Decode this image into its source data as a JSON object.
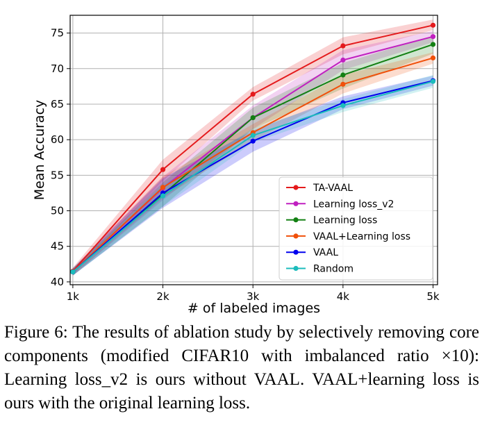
{
  "chart_data": {
    "type": "line",
    "xlabel": "# of labeled images",
    "ylabel": "Mean Accuracy",
    "categories": [
      "1k",
      "2k",
      "3k",
      "4k",
      "5k"
    ],
    "x": [
      1,
      2,
      3,
      4,
      5
    ],
    "xlim": [
      0.97,
      5.05
    ],
    "ylim": [
      39.6,
      77.5
    ],
    "yticks": [
      40,
      45,
      50,
      55,
      60,
      65,
      70,
      75
    ],
    "grid": true,
    "legend_position": "lower-right",
    "series": [
      {
        "name": "TA-VAAL",
        "color": "#e41a1c",
        "values": [
          41.5,
          55.8,
          66.4,
          73.2,
          76.1
        ],
        "band": [
          [
            41.0,
            42.0
          ],
          [
            54.2,
            57.2
          ],
          [
            65.5,
            67.4
          ],
          [
            72.0,
            74.4
          ],
          [
            75.4,
            76.9
          ]
        ]
      },
      {
        "name": "Learning loss_v2",
        "color": "#c020c0",
        "values": [
          41.4,
          53.2,
          63.1,
          71.2,
          74.5
        ],
        "band": [
          [
            40.9,
            41.9
          ],
          [
            51.5,
            54.8
          ],
          [
            61.5,
            64.8
          ],
          [
            69.8,
            72.6
          ],
          [
            73.7,
            75.3
          ]
        ]
      },
      {
        "name": "Learning loss",
        "color": "#138013",
        "values": [
          41.4,
          52.3,
          63.1,
          69.1,
          73.4
        ],
        "band": [
          [
            40.9,
            41.9
          ],
          [
            50.6,
            54.0
          ],
          [
            61.5,
            64.5
          ],
          [
            67.2,
            70.8
          ],
          [
            72.1,
            74.6
          ]
        ]
      },
      {
        "name": "VAAL+Learning loss",
        "color": "#f0500a",
        "values": [
          41.4,
          53.3,
          61.0,
          67.8,
          71.5
        ],
        "band": [
          [
            40.9,
            41.9
          ],
          [
            51.8,
            54.8
          ],
          [
            59.8,
            62.2
          ],
          [
            66.5,
            69.1
          ],
          [
            70.7,
            72.3
          ]
        ]
      },
      {
        "name": "VAAL",
        "color": "#0000ee",
        "values": [
          41.4,
          52.5,
          59.8,
          65.2,
          68.3
        ],
        "band": [
          [
            40.9,
            41.9
          ],
          [
            50.4,
            54.6
          ],
          [
            58.3,
            61.3
          ],
          [
            64.3,
            66.1
          ],
          [
            67.6,
            69.0
          ]
        ]
      },
      {
        "name": "Random",
        "color": "#1cbcbc",
        "values": [
          41.4,
          52.1,
          60.6,
          64.8,
          68.2
        ],
        "band": [
          [
            40.9,
            41.9
          ],
          [
            50.6,
            53.6
          ],
          [
            59.6,
            61.6
          ],
          [
            63.9,
            65.7
          ],
          [
            67.3,
            69.1
          ]
        ]
      }
    ]
  },
  "caption": {
    "label": "Figure 6:",
    "text": "The results of ablation study by selectively removing core components (modified CIFAR10 with imbalanced ratio ×10): Learning loss_v2 is ours without VAAL. VAAL+learning loss is ours with the original learning loss."
  }
}
